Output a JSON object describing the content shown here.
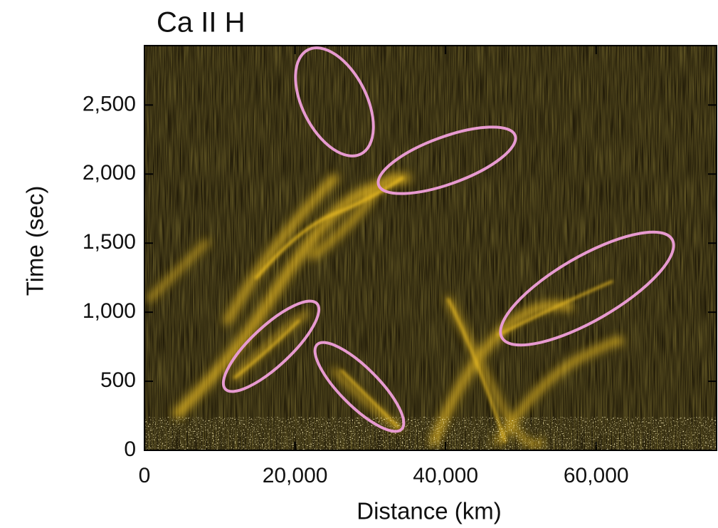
{
  "chart_data": {
    "type": "image",
    "title": "Ca II H",
    "x_label": "Distance (km)",
    "y_label": "Time (sec)",
    "xlim": [
      0,
      76000
    ],
    "ylim": [
      0,
      2930
    ],
    "xticks": [
      0,
      {
        "value": 20000,
        "label": "20,000"
      },
      {
        "value": 40000,
        "label": "40,000"
      },
      {
        "value": 60000,
        "label": "60,000"
      }
    ],
    "yticks": [
      0,
      500,
      {
        "value": 1000,
        "label": "1,000"
      },
      {
        "value": 1500,
        "label": "1,500"
      },
      {
        "value": 2000,
        "label": "2,000"
      },
      {
        "value": 2500,
        "label": "2,500"
      }
    ]
  }
}
